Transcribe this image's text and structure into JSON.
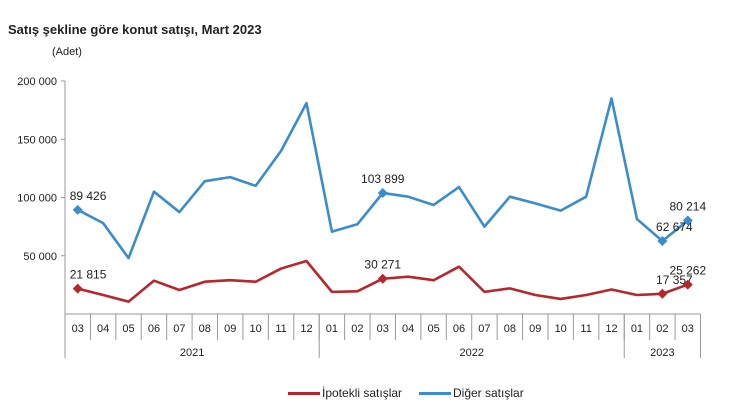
{
  "chart_data": {
    "type": "line",
    "title": "Satış şekline göre konut satışı, Mart 2023",
    "ylabel": "(Adet)",
    "xlabel": "",
    "ylim": [
      0,
      200000
    ],
    "yticks": [
      50000,
      100000,
      150000,
      200000
    ],
    "ytick_labels": [
      "50 000",
      "100 000",
      "150 000",
      "200 000"
    ],
    "grid": false,
    "legend_position": "bottom",
    "categories": [
      "03",
      "04",
      "05",
      "06",
      "07",
      "08",
      "09",
      "10",
      "11",
      "12",
      "01",
      "02",
      "03",
      "04",
      "05",
      "06",
      "07",
      "08",
      "09",
      "10",
      "11",
      "12",
      "01",
      "02",
      "03"
    ],
    "years": [
      {
        "label": "2021",
        "count": 10
      },
      {
        "label": "2022",
        "count": 12
      },
      {
        "label": "2023",
        "count": 3
      }
    ],
    "series": [
      {
        "name": "İpotekli satışlar",
        "color": "#b5272d",
        "values": [
          21815,
          16300,
          10600,
          28600,
          20600,
          27700,
          29000,
          27700,
          39000,
          45500,
          19000,
          19500,
          30271,
          32000,
          29000,
          40600,
          19000,
          22000,
          16300,
          12900,
          16300,
          21000,
          16300,
          17357,
          25262
        ],
        "labels": {
          "0": "21 815",
          "12": "30 271",
          "23": "17 357",
          "24": "25 262"
        }
      },
      {
        "name": "Diğer satışlar",
        "color": "#3b8ccc",
        "values": [
          89426,
          78000,
          48000,
          105000,
          87500,
          114000,
          117500,
          110000,
          140000,
          181000,
          70700,
          77000,
          103899,
          100700,
          93600,
          109000,
          75000,
          100700,
          95000,
          88700,
          100700,
          185000,
          81500,
          62674,
          80214
        ],
        "labels": {
          "0": "89 426",
          "12": "103 899",
          "23": "62 674",
          "24": "80 214"
        }
      }
    ]
  }
}
